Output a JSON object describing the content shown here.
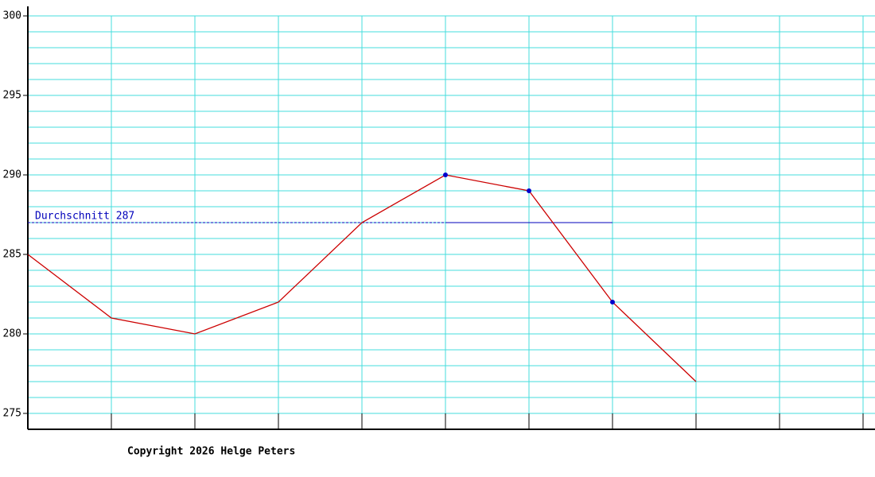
{
  "chart_data": {
    "type": "line",
    "categories": [
      null,
      null,
      null,
      null,
      null,
      null,
      null,
      null,
      null,
      null,
      null
    ],
    "series": [
      {
        "color": "#cc0000",
        "values": [
          285,
          281,
          280,
          282,
          287,
          290,
          289,
          282,
          277,
          null,
          null
        ]
      }
    ],
    "marker_color": "#0000cc",
    "markers": [
      5,
      6,
      7
    ],
    "ylim": [
      274,
      300
    ],
    "yticks": [
      275,
      280,
      285,
      290,
      295,
      300
    ],
    "minor_yticks": [
      275,
      276,
      277,
      278,
      279,
      280,
      281,
      282,
      283,
      284,
      285,
      286,
      287,
      288,
      289,
      290,
      291,
      292,
      293,
      294,
      295,
      296,
      297,
      298,
      299,
      300
    ],
    "grid": true,
    "grid_color": "#44dddd",
    "average": {
      "label": "Durchschnitt 287",
      "value": 287,
      "color": "#0000bb"
    },
    "copyright": "Copyright 2026 Helge Peters"
  }
}
